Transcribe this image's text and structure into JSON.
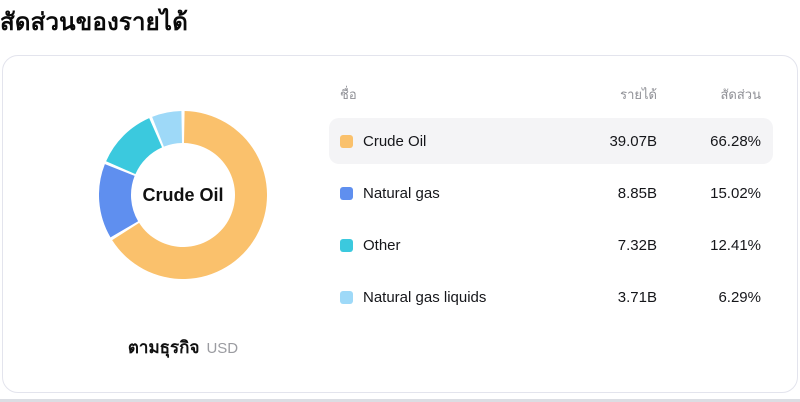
{
  "page_title": "สัดส่วนของรายได้",
  "card": {
    "donut": {
      "center_label": "Crude Oil",
      "caption": "ตามธุรกิจ",
      "caption_unit": "USD"
    },
    "table": {
      "headers": {
        "name": "ชื่อ",
        "revenue": "รายได้",
        "share": "สัดส่วน"
      },
      "rows": [
        {
          "name": "Crude Oil",
          "revenue": "39.07B",
          "share": "66.28%",
          "color": "#FAC16C",
          "highlighted": true
        },
        {
          "name": "Natural gas",
          "revenue": "8.85B",
          "share": "15.02%",
          "color": "#5F8FEF",
          "highlighted": false
        },
        {
          "name": "Other",
          "revenue": "7.32B",
          "share": "12.41%",
          "color": "#3BC9DE",
          "highlighted": false
        },
        {
          "name": "Natural gas liquids",
          "revenue": "3.71B",
          "share": "6.29%",
          "color": "#9ED9F8",
          "highlighted": false
        }
      ]
    }
  },
  "chart_data": {
    "type": "pie",
    "donut": true,
    "title": "สัดส่วนของรายได้",
    "grouping_label": "ตามธุรกิจ",
    "unit": "USD",
    "center_label": "Crude Oil",
    "categories": [
      "Crude Oil",
      "Natural gas",
      "Other",
      "Natural gas liquids"
    ],
    "values_billions_usd": [
      39.07,
      8.85,
      7.32,
      3.71
    ],
    "percentages": [
      66.28,
      15.02,
      12.41,
      6.29
    ],
    "colors": [
      "#FAC16C",
      "#5F8FEF",
      "#3BC9DE",
      "#9ED9F8"
    ],
    "start_angle_deg": 0,
    "direction": "clockwise",
    "legend_position": "right-table"
  }
}
